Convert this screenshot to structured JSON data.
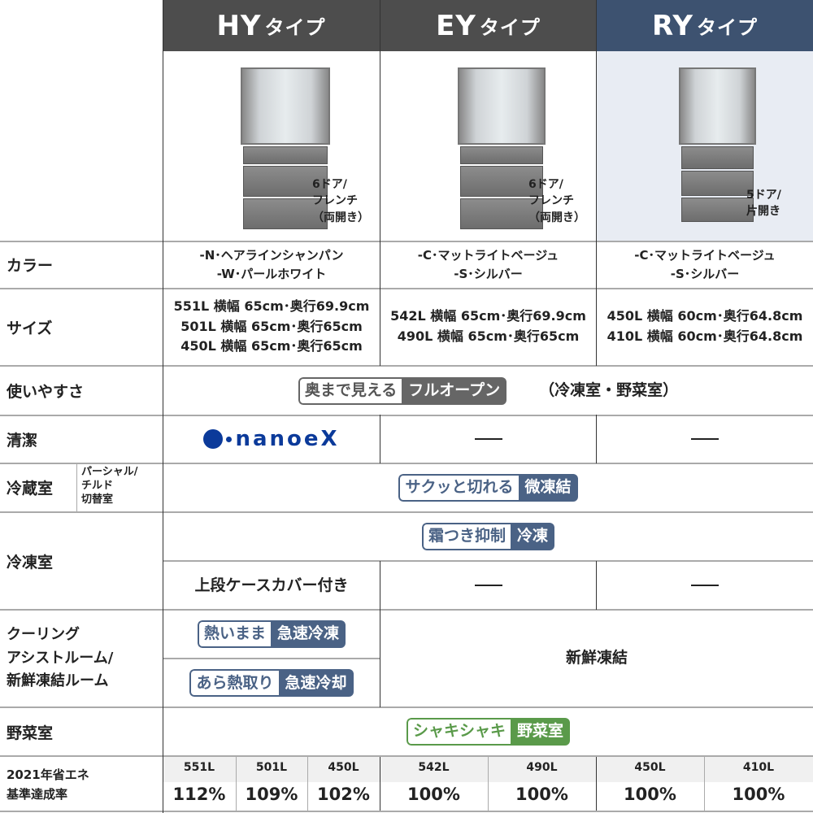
{
  "types": [
    {
      "name": "HY",
      "suffix": "タイプ",
      "color": "#4d4d4d"
    },
    {
      "name": "EY",
      "suffix": "タイプ",
      "color": "#4d4d4d"
    },
    {
      "name": "RY",
      "suffix": "タイプ",
      "color": "#3d5270"
    }
  ],
  "doors": [
    "6ドア/\nフレンチ\n（両開き）",
    "6ドア/\nフレンチ\n（両開き）",
    "5ドア/\n片開き"
  ],
  "labels": {
    "color": "カラー",
    "size": "サイズ",
    "usability": "使いやすさ",
    "clean": "清潔",
    "fridge": "冷蔵室",
    "partial": "パーシャル/\nチルド\n切替室",
    "freezer": "冷凍室",
    "cooling": "クーリング\nアシストルーム/\n新鮮凍結ルーム",
    "veg": "野菜室",
    "eff": "2021年省エネ\n基準達成率"
  },
  "colors": [
    [
      "-N･ヘアラインシャンパン",
      "-W･パールホワイト"
    ],
    [
      "-C･マットライトベージュ",
      "-S･シルバー"
    ],
    [
      "-C･マットライトベージュ",
      "-S･シルバー"
    ]
  ],
  "sizes": [
    [
      "551L 横幅 65cm･奥行69.9cm",
      "501L 横幅 65cm･奥行65cm",
      "450L 横幅 65cm･奥行65cm"
    ],
    [
      "542L 横幅 65cm･奥行69.9cm",
      "490L 横幅 65cm･奥行65cm"
    ],
    [
      "450L 横幅 60cm･奥行64.8cm",
      "410L 横幅 60cm･奥行64.8cm"
    ]
  ],
  "usability": {
    "a": "奥まで見える",
    "b": "フルオープン",
    "note": "（冷凍室・野菜室）"
  },
  "clean": {
    "logo": "nanoeX",
    "dash": "—"
  },
  "partial_badge": {
    "a": "サクッと切れる",
    "b": "微凍結"
  },
  "freezer_badge": {
    "a": "霜つき抑制",
    "b": "冷凍"
  },
  "freezer_cover": "上段ケースカバー付き",
  "cooling": [
    {
      "a": "熱いまま",
      "b": "急速冷凍"
    },
    {
      "a": "あら熱取り",
      "b": "急速冷却"
    }
  ],
  "cooling_other": "新鮮凍結",
  "veg_badge": {
    "a": "シャキシャキ",
    "b": "野菜室"
  },
  "efficiency": [
    {
      "cap": "551L",
      "rate": "112%"
    },
    {
      "cap": "501L",
      "rate": "109%"
    },
    {
      "cap": "450L",
      "rate": "102%"
    },
    {
      "cap": "542L",
      "rate": "100%"
    },
    {
      "cap": "490L",
      "rate": "100%"
    },
    {
      "cap": "450L",
      "rate": "100%"
    },
    {
      "cap": "410L",
      "rate": "100%"
    }
  ],
  "accent": {
    "gray": "#666666",
    "blue": "#4a6285",
    "green": "#5a9a4a",
    "nanoe": "#0b3a9a"
  }
}
